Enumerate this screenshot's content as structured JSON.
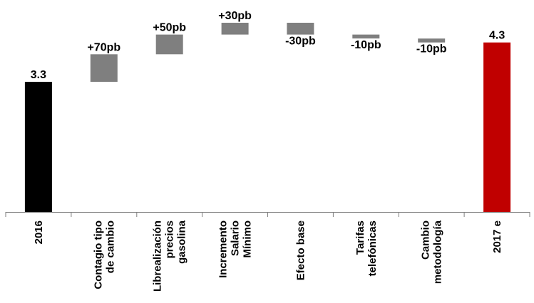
{
  "chart_data": {
    "type": "bar",
    "subtype": "waterfall",
    "categories": [
      "2016",
      "Contagio tipo de cambio",
      "Librealización precios gasolina",
      "Incremento Salario Mínimo",
      "Efecto base",
      "Tarifas telefónicas",
      "Cambio metodología",
      "2017 e"
    ],
    "category_label_lines": [
      [
        "2016"
      ],
      [
        "Contagio tipo",
        "de cambio"
      ],
      [
        "Librealización",
        "precios",
        "gasolina"
      ],
      [
        "Incremento",
        "Salario",
        "Mínimo"
      ],
      [
        "Efecto base"
      ],
      [
        "Tarifas",
        "telefónicas"
      ],
      [
        "Cambio",
        "metodología"
      ],
      [
        "2017 e"
      ]
    ],
    "bars": [
      {
        "kind": "total",
        "start": 0.0,
        "end": 3.3,
        "label": "3.3",
        "color": "#000000",
        "label_pos": "above"
      },
      {
        "kind": "delta",
        "start": 3.3,
        "end": 4.0,
        "label": "+70pb",
        "color": "#7f7f7f",
        "label_pos": "above"
      },
      {
        "kind": "delta",
        "start": 4.0,
        "end": 4.5,
        "label": "+50pb",
        "color": "#7f7f7f",
        "label_pos": "above"
      },
      {
        "kind": "delta",
        "start": 4.5,
        "end": 4.8,
        "label": "+30pb",
        "color": "#7f7f7f",
        "label_pos": "above"
      },
      {
        "kind": "delta",
        "start": 4.8,
        "end": 4.5,
        "label": "-30pb",
        "color": "#7f7f7f",
        "label_pos": "below"
      },
      {
        "kind": "delta",
        "start": 4.5,
        "end": 4.4,
        "label": "-10pb",
        "color": "#7f7f7f",
        "label_pos": "below"
      },
      {
        "kind": "delta",
        "start": 4.4,
        "end": 4.3,
        "label": "-10pb",
        "color": "#7f7f7f",
        "label_pos": "below"
      },
      {
        "kind": "total",
        "start": 0.0,
        "end": 4.3,
        "label": "4.3",
        "color": "#c00000",
        "label_pos": "above"
      }
    ],
    "ylim": [
      0,
      4.8
    ],
    "title": "",
    "xlabel": "",
    "ylabel": "",
    "grid": false,
    "legend": "none",
    "axis_color": "#7f7f7f"
  }
}
